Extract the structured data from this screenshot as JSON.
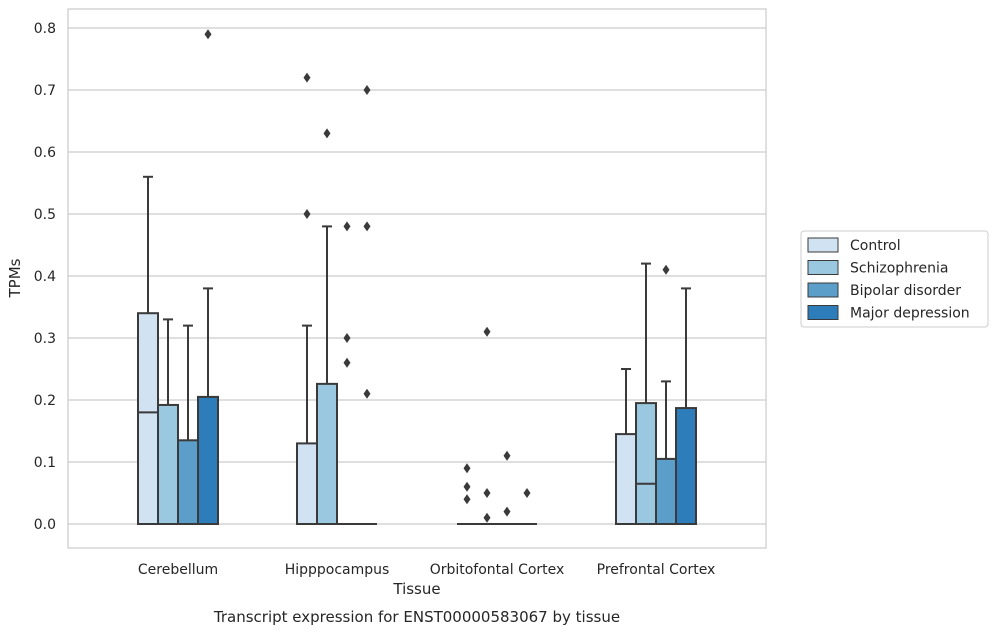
{
  "caption": "Transcript expression for ENST00000583067 by tissue",
  "chart_data": {
    "type": "box",
    "xlabel": "Tissue",
    "ylabel": "TPMs",
    "ylim": [
      -0.04,
      0.83
    ],
    "yticks": [
      0.0,
      0.1,
      0.2,
      0.3,
      0.4,
      0.5,
      0.6,
      0.7,
      0.8
    ],
    "ytick_labels": [
      "0.0",
      "0.1",
      "0.2",
      "0.3",
      "0.4",
      "0.5",
      "0.6",
      "0.7",
      "0.8"
    ],
    "grid": "horizontal",
    "legend_position": "right",
    "categories": [
      "Cerebellum",
      "Hipppocampus",
      "Orbitofontal Cortex",
      "Prefrontal Cortex"
    ],
    "series": [
      {
        "name": "Control",
        "color": "#d1e2f2",
        "boxes": [
          {
            "q1": 0.0,
            "median": 0.18,
            "q3": 0.34,
            "whisker_low": 0.0,
            "whisker_high": 0.56,
            "outliers": []
          },
          {
            "q1": 0.0,
            "median": 0.0,
            "q3": 0.13,
            "whisker_low": 0.0,
            "whisker_high": 0.32,
            "outliers": [
              0.5,
              0.72
            ]
          },
          {
            "q1": 0.0,
            "median": 0.0,
            "q3": 0.0,
            "whisker_low": 0.0,
            "whisker_high": 0.0,
            "outliers": [
              0.04,
              0.06,
              0.09
            ]
          },
          {
            "q1": 0.0,
            "median": 0.0,
            "q3": 0.145,
            "whisker_low": 0.0,
            "whisker_high": 0.25,
            "outliers": []
          }
        ]
      },
      {
        "name": "Schizophrenia",
        "color": "#9ac8e0",
        "boxes": [
          {
            "q1": 0.0,
            "median": 0.0,
            "q3": 0.192,
            "whisker_low": 0.0,
            "whisker_high": 0.33,
            "outliers": []
          },
          {
            "q1": 0.0,
            "median": 0.0,
            "q3": 0.226,
            "whisker_low": 0.0,
            "whisker_high": 0.48,
            "outliers": [
              0.63
            ]
          },
          {
            "q1": 0.0,
            "median": 0.0,
            "q3": 0.0,
            "whisker_low": 0.0,
            "whisker_high": 0.0,
            "outliers": [
              0.01,
              0.05,
              0.31
            ]
          },
          {
            "q1": 0.0,
            "median": 0.065,
            "q3": 0.195,
            "whisker_low": 0.0,
            "whisker_high": 0.42,
            "outliers": []
          }
        ]
      },
      {
        "name": "Bipolar disorder",
        "color": "#5b9ec9",
        "boxes": [
          {
            "q1": 0.0,
            "median": 0.0,
            "q3": 0.135,
            "whisker_low": 0.0,
            "whisker_high": 0.32,
            "outliers": []
          },
          {
            "q1": 0.0,
            "median": 0.0,
            "q3": 0.0,
            "whisker_low": 0.0,
            "whisker_high": 0.0,
            "outliers": [
              0.26,
              0.3,
              0.48
            ]
          },
          {
            "q1": 0.0,
            "median": 0.0,
            "q3": 0.0,
            "whisker_low": 0.0,
            "whisker_high": 0.0,
            "outliers": [
              0.02,
              0.11
            ]
          },
          {
            "q1": 0.0,
            "median": 0.0,
            "q3": 0.105,
            "whisker_low": 0.0,
            "whisker_high": 0.23,
            "outliers": [
              0.41
            ]
          }
        ]
      },
      {
        "name": "Major depression",
        "color": "#2d7dbb",
        "boxes": [
          {
            "q1": 0.0,
            "median": 0.0,
            "q3": 0.205,
            "whisker_low": 0.0,
            "whisker_high": 0.38,
            "outliers": [
              0.79
            ]
          },
          {
            "q1": 0.0,
            "median": 0.0,
            "q3": 0.0,
            "whisker_low": 0.0,
            "whisker_high": 0.0,
            "outliers": [
              0.21,
              0.48,
              0.7
            ]
          },
          {
            "q1": 0.0,
            "median": 0.0,
            "q3": 0.0,
            "whisker_low": 0.0,
            "whisker_high": 0.0,
            "outliers": [
              0.05
            ]
          },
          {
            "q1": 0.0,
            "median": 0.0,
            "q3": 0.187,
            "whisker_low": 0.0,
            "whisker_high": 0.38,
            "outliers": []
          }
        ]
      }
    ]
  }
}
